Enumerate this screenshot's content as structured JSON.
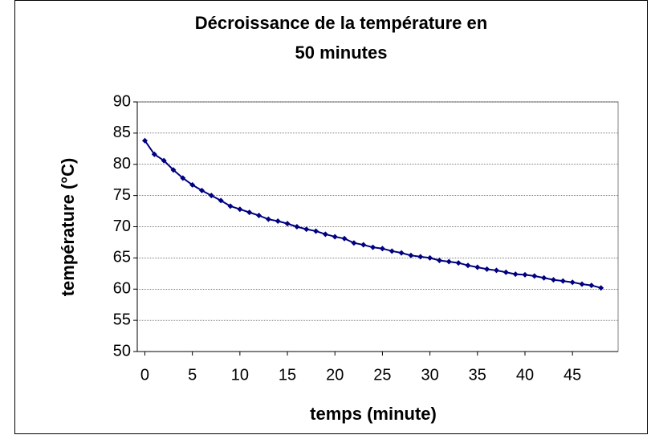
{
  "chart_data": {
    "type": "line",
    "title": [
      "Décroissance de la température en",
      "50 minutes"
    ],
    "x_label": "temps (minute)",
    "y_label": "température (°C)",
    "x": [
      0,
      1,
      2,
      3,
      4,
      5,
      6,
      7,
      8,
      9,
      10,
      11,
      12,
      13,
      14,
      15,
      16,
      17,
      18,
      19,
      20,
      21,
      22,
      23,
      24,
      25,
      26,
      27,
      28,
      29,
      30,
      31,
      32,
      33,
      34,
      35,
      36,
      37,
      38,
      39,
      40,
      41,
      42,
      43,
      44,
      45,
      46,
      47,
      48
    ],
    "series": [
      {
        "name": "température",
        "color": "#000080",
        "values": [
          83.8,
          81.6,
          80.6,
          79.1,
          77.8,
          76.7,
          75.8,
          75.0,
          74.2,
          73.3,
          72.8,
          72.3,
          71.8,
          71.2,
          70.9,
          70.5,
          70.0,
          69.6,
          69.3,
          68.8,
          68.4,
          68.1,
          67.4,
          67.1,
          66.7,
          66.5,
          66.1,
          65.8,
          65.4,
          65.2,
          65.0,
          64.6,
          64.4,
          64.2,
          63.8,
          63.5,
          63.2,
          63.0,
          62.7,
          62.4,
          62.3,
          62.1,
          61.8,
          61.5,
          61.3,
          61.1,
          60.8,
          60.6,
          60.2
        ]
      }
    ],
    "xlim": [
      -0.8,
      49.8
    ],
    "xticks": [
      0,
      5,
      10,
      15,
      20,
      25,
      30,
      35,
      40,
      45
    ],
    "ylim": [
      50,
      90
    ],
    "yticks": [
      50,
      55,
      60,
      65,
      70,
      75,
      80,
      85,
      90
    ],
    "grid": true
  }
}
